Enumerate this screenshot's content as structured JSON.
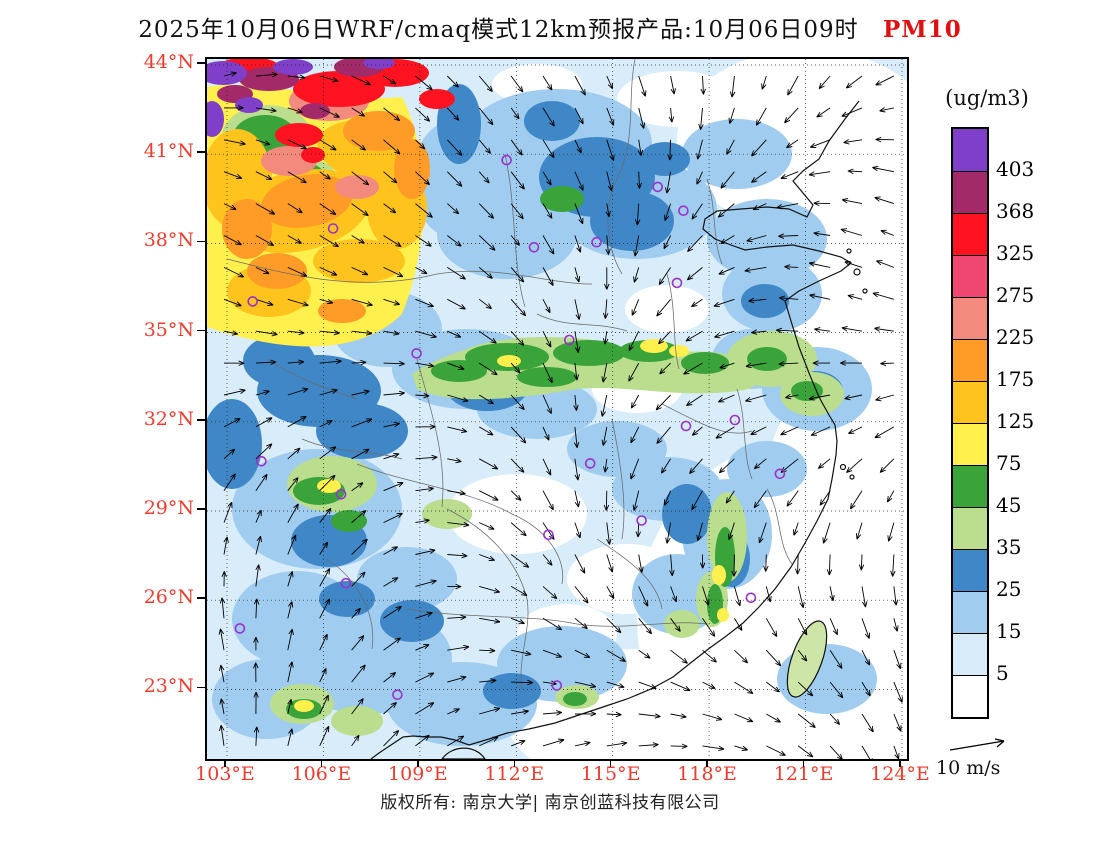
{
  "title": {
    "main": "2025年10月06日WRF/cmaq模式12km预报产品:10月06日09时",
    "pollutant": "PM10"
  },
  "colorbar_title": "(ug/m3)",
  "wind_legend": "10 m/s",
  "footer": "版权所有: 南京大学| 南京创蓝科技有限公司",
  "axes": {
    "lat_ticks": [
      "44°N",
      "41°N",
      "38°N",
      "35°N",
      "32°N",
      "29°N",
      "26°N",
      "23°N"
    ],
    "lon_ticks": [
      "103°E",
      "106°E",
      "109°E",
      "112°E",
      "115°E",
      "118°E",
      "121°E",
      "124°E"
    ]
  },
  "colors": {
    "axis_label": "#EF3B2C",
    "pollutant_red": "#E01010",
    "marker_purple": "#9932CC"
  },
  "chart_data": {
    "type": "heatmap",
    "title": "2025年10月06日WRF/cmaq模式12km预报产品:10月06日09时 PM10",
    "variable": "PM10",
    "units": "ug/m3",
    "lon_ticks_deg": [
      103,
      106,
      109,
      112,
      115,
      118,
      121,
      124
    ],
    "lat_ticks_deg": [
      44,
      41,
      38,
      35,
      32,
      29,
      26,
      23
    ],
    "lon_range": [
      103,
      124
    ],
    "lat_range": [
      23,
      44
    ],
    "colorbar_levels": [
      5,
      15,
      25,
      35,
      45,
      75,
      125,
      175,
      225,
      275,
      325,
      368,
      403
    ],
    "colorbar_colors_low_to_high": [
      "#FFFFFF",
      "#D9ECFA",
      "#9FCCEF",
      "#3F87C6",
      "#BADD8E",
      "#3AA33A",
      "#FFF04D",
      "#FFC31E",
      "#FF9C28",
      "#F28B7D",
      "#EF476F",
      "#FF1320",
      "#A32A68",
      "#7F3FC9"
    ],
    "wind_reference_ms": 10,
    "station_markers_lonlat": [
      [
        111.7,
        40.8
      ],
      [
        106.3,
        38.5
      ],
      [
        103.8,
        36.05
      ],
      [
        112.55,
        37.87
      ],
      [
        114.5,
        38.04
      ],
      [
        117.0,
        36.67
      ],
      [
        116.4,
        39.9
      ],
      [
        117.2,
        39.1
      ],
      [
        108.9,
        34.3
      ],
      [
        113.65,
        34.75
      ],
      [
        117.28,
        31.86
      ],
      [
        118.8,
        32.06
      ],
      [
        120.2,
        30.25
      ],
      [
        114.3,
        30.6
      ],
      [
        113.0,
        28.2
      ],
      [
        115.9,
        28.68
      ],
      [
        104.07,
        30.67
      ],
      [
        106.55,
        29.56
      ],
      [
        106.7,
        26.57
      ],
      [
        103.4,
        25.05
      ],
      [
        108.3,
        22.82
      ],
      [
        113.26,
        23.13
      ],
      [
        119.3,
        26.08
      ]
    ]
  }
}
